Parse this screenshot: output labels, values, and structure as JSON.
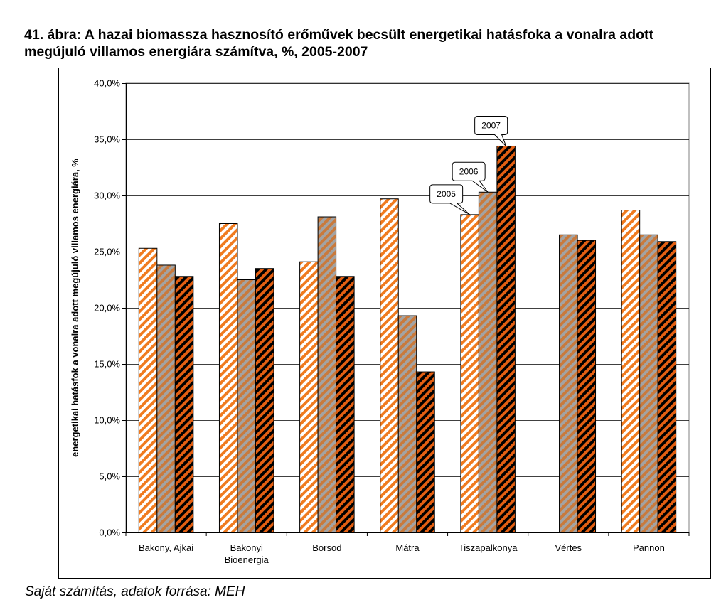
{
  "figure": {
    "title": "41. ábra: A hazai biomassza hasznosító erőművek becsült energetikai hatásfoka a vonalra adott megújuló villamos energiára számítva, %, 2005-2007",
    "source": "Saját számítás, adatok forrása: MEH"
  },
  "chart_data": {
    "type": "bar",
    "title": "41. ábra: A hazai biomassza hasznosító erőművek becsült energetikai hatásfoka a vonalra adott megújuló villamos energiára számítva, %, 2005-2007",
    "xlabel": "",
    "ylabel": "energetikai hatásfok a vonalra adott megújuló villamos energiára, %",
    "categories": [
      "Bakony, Ajkai",
      "Bakonyi Bioenergia",
      "Borsod",
      "Mátra",
      "Tiszapalkonya",
      "Vértes",
      "Pannon"
    ],
    "category_lines": [
      [
        "Bakony, Ajkai"
      ],
      [
        "Bakonyi",
        "Bioenergia"
      ],
      [
        "Borsod"
      ],
      [
        "Mátra"
      ],
      [
        "Tiszapalkonya"
      ],
      [
        "Vértes"
      ],
      [
        "Pannon"
      ]
    ],
    "series": [
      {
        "name": "2005",
        "values": [
          25.3,
          27.5,
          24.1,
          29.7,
          28.3,
          null,
          28.7
        ],
        "color": "#f07b1f",
        "stripe": "#ffffff"
      },
      {
        "name": "2006",
        "values": [
          23.8,
          22.5,
          28.1,
          19.3,
          30.3,
          26.5,
          26.5
        ],
        "color": "#b97a4c",
        "stripe": "#a3a3a3"
      },
      {
        "name": "2007",
        "values": [
          22.8,
          23.5,
          22.8,
          14.3,
          34.4,
          26.0,
          25.9
        ],
        "color": "#e35f12",
        "stripe": "#000000"
      }
    ],
    "ylim": [
      0,
      40
    ],
    "ytick_step": 5,
    "ytick_labels": [
      "0,0%",
      "5,0%",
      "10,0%",
      "15,0%",
      "20,0%",
      "25,0%",
      "30,0%",
      "35,0%",
      "40,0%"
    ],
    "grid": true,
    "legend": "callouts on Tiszapalkonya bars",
    "callouts": [
      {
        "text": "2005",
        "series": 0,
        "category": 4
      },
      {
        "text": "2006",
        "series": 1,
        "category": 4
      },
      {
        "text": "2007",
        "series": 2,
        "category": 4
      }
    ]
  }
}
